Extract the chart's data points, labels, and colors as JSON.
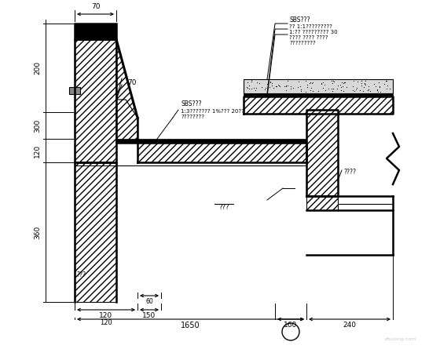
{
  "bg_color": "#ffffff",
  "line_color": "#000000",
  "annotations": {
    "dim_top": "70",
    "dim_left_200": "200",
    "dim_left_300": "300",
    "dim_left_120": "120",
    "dim_left_360": "360",
    "dim_slope_70": "70",
    "dim_bot_120a": "120",
    "dim_bot_150": "150",
    "dim_bot_60": "60",
    "dim_bot_120b": "120",
    "dim_bot_1650": "1650",
    "dim_bot_160": "160",
    "dim_bot_240": "240",
    "label_sbs_left1": "SBS???",
    "label_sbs_left2": "1:3??????? 1%??? 20??",
    "label_sbs_left3": "????????",
    "label_sbs_right1": "SBS???",
    "label_sbs_right2": "?? 1:1?????????",
    "label_sbs_right3": "1:?? ????????? 30",
    "label_sbs_right4": "???? ???? ????",
    "label_sbs_right5": "?????????",
    "label_right_inner": "????",
    "label_bot_mid": "???",
    "label_bot_left": "???"
  }
}
